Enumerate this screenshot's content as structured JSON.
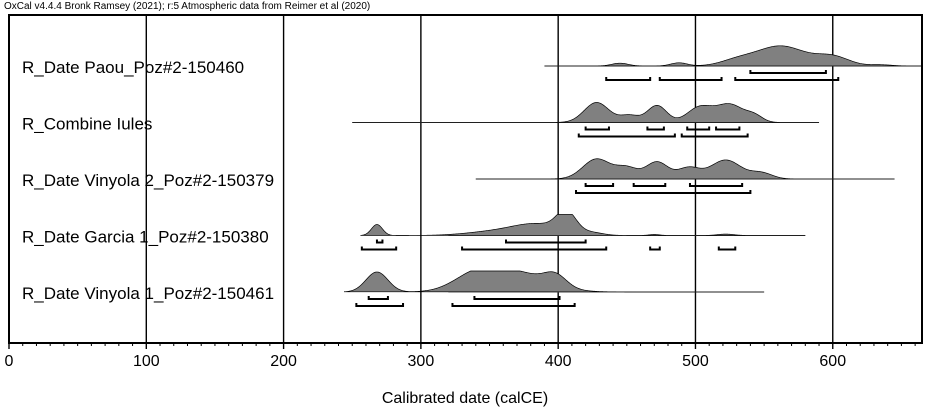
{
  "header": "OxCal v4.4.4 Bronk Ramsey (2021); r:5 Atmospheric data from Reimer et al (2020)",
  "chart_data": {
    "type": "area",
    "title": "",
    "xlabel": "Calibrated date (calCE)",
    "ylabel": "",
    "xlim": [
      0,
      665
    ],
    "xticks": [
      0,
      100,
      200,
      300,
      400,
      500,
      600
    ],
    "grid": "vertical lines at 100-year intervals",
    "colors": {
      "fill": "#808080",
      "stroke": "#000000",
      "line": "#808080"
    },
    "series": [
      {
        "name": "R_Date Paou_Poz#2-150460",
        "range": [
          390,
          665
        ],
        "peaks": [
          [
            445,
            6,
            0.14
          ],
          [
            488,
            6,
            0.16
          ],
          [
            530,
            12,
            0.25
          ],
          [
            562,
            18,
            1.0
          ],
          [
            600,
            12,
            0.45
          ],
          [
            635,
            8,
            0.06
          ]
        ],
        "ranges_68": [
          [
            540,
            595
          ]
        ],
        "ranges_95": [
          [
            435,
            467
          ],
          [
            474,
            519
          ],
          [
            529,
            604
          ]
        ]
      },
      {
        "name": "R_Combine Iules",
        "range": [
          250,
          590
        ],
        "peaks": [
          [
            428,
            9,
            1.0
          ],
          [
            452,
            7,
            0.35
          ],
          [
            472,
            7,
            0.85
          ],
          [
            503,
            9,
            0.75
          ],
          [
            525,
            10,
            0.9
          ],
          [
            543,
            6,
            0.3
          ]
        ],
        "ranges_68": [
          [
            420,
            437
          ],
          [
            465,
            477
          ],
          [
            494,
            510
          ],
          [
            515,
            532
          ]
        ],
        "ranges_95": [
          [
            415,
            485
          ],
          [
            490,
            538
          ]
        ]
      },
      {
        "name": "R_Date Vinyola 2_Poz#2-150379",
        "range": [
          340,
          645
        ],
        "peaks": [
          [
            428,
            10,
            1.0
          ],
          [
            450,
            8,
            0.55
          ],
          [
            472,
            8,
            0.85
          ],
          [
            495,
            8,
            0.55
          ],
          [
            522,
            11,
            0.95
          ],
          [
            548,
            8,
            0.3
          ]
        ],
        "ranges_68": [
          [
            420,
            440
          ],
          [
            455,
            478
          ],
          [
            496,
            534
          ]
        ],
        "ranges_95": [
          [
            413,
            540
          ]
        ]
      },
      {
        "name": "R_Date Garcia 1_Poz#2-150380",
        "range": [
          320,
          580
        ],
        "peaks": [
          [
            268,
            4,
            0.55
          ],
          [
            352,
            20,
            0.18
          ],
          [
            385,
            18,
            0.55
          ],
          [
            406,
            7,
            1.0
          ],
          [
            425,
            8,
            0.12
          ],
          [
            470,
            4,
            0.05
          ],
          [
            522,
            6,
            0.07
          ]
        ],
        "ranges_68": [
          [
            268,
            272
          ],
          [
            362,
            420
          ]
        ],
        "ranges_95": [
          [
            257,
            282
          ],
          [
            330,
            435
          ],
          [
            467,
            474
          ],
          [
            517,
            529
          ]
        ]
      },
      {
        "name": "R_Date Vinyola 1_Poz#2-150461",
        "range": [
          320,
          550
        ],
        "peaks": [
          [
            268,
            8,
            1.0
          ],
          [
            340,
            16,
            0.78
          ],
          [
            370,
            22,
            0.95
          ],
          [
            398,
            8,
            0.55
          ]
        ],
        "ranges_68": [
          [
            262,
            276
          ],
          [
            339,
            401
          ]
        ],
        "ranges_95": [
          [
            253,
            287
          ],
          [
            323,
            412
          ]
        ]
      }
    ]
  }
}
